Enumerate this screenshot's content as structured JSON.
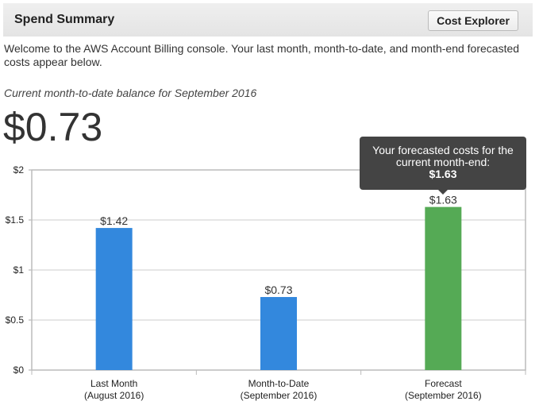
{
  "header": {
    "title": "Spend Summary",
    "button": "Cost Explorer"
  },
  "intro": "Welcome to the AWS Account Billing console. Your last month, month-to-date, and month-end forecasted costs appear below.",
  "balance_label": "Current month-to-date balance for September 2016",
  "balance": "$0.73",
  "tooltip": {
    "text": "Your forecasted costs for the current month-end:",
    "value": "$1.63"
  },
  "chart_data": {
    "type": "bar",
    "categories": [
      [
        "Last Month",
        "(August 2016)"
      ],
      [
        "Month-to-Date",
        "(September 2016)"
      ],
      [
        "Forecast",
        "(September 2016)"
      ]
    ],
    "values": [
      1.42,
      0.73,
      1.63
    ],
    "data_labels": [
      "$1.42",
      "$0.73",
      "$1.63"
    ],
    "colors": [
      "#3388dd",
      "#3388dd",
      "#55aa55"
    ],
    "yticks": [
      0,
      0.5,
      1,
      1.5,
      2
    ],
    "ytick_labels": [
      "$0",
      "$0.5",
      "$1",
      "$1.5",
      "$2"
    ],
    "ylim": [
      0,
      2
    ],
    "grid": true
  }
}
